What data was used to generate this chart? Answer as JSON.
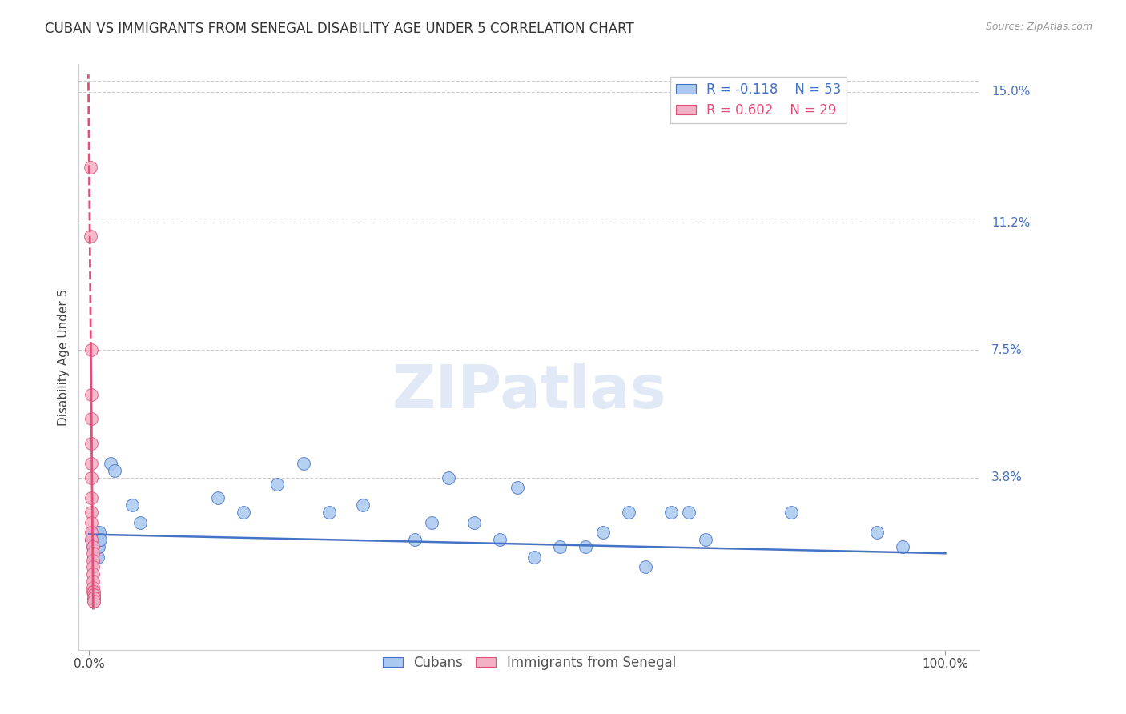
{
  "title": "CUBAN VS IMMIGRANTS FROM SENEGAL DISABILITY AGE UNDER 5 CORRELATION CHART",
  "source": "Source: ZipAtlas.com",
  "ylabel": "Disability Age Under 5",
  "ytick_labels": [
    "15.0%",
    "11.2%",
    "7.5%",
    "3.8%"
  ],
  "ytick_values": [
    0.15,
    0.112,
    0.075,
    0.038
  ],
  "ymax": 0.158,
  "ymin": -0.012,
  "xmax": 1.04,
  "xmin": -0.012,
  "legend_R_cubans": "R = -0.118",
  "legend_N_cubans": "N = 53",
  "legend_R_senegal": "R = 0.602",
  "legend_N_senegal": "N = 29",
  "cubans_color": "#aac8f0",
  "senegal_color": "#f4b0c4",
  "trend_cubans_color": "#4472c4",
  "trend_senegal_color": "#e0507a",
  "background_color": "#ffffff",
  "cubans_x": [
    0.003,
    0.004,
    0.004,
    0.005,
    0.005,
    0.005,
    0.006,
    0.006,
    0.006,
    0.007,
    0.007,
    0.007,
    0.008,
    0.008,
    0.008,
    0.009,
    0.009,
    0.01,
    0.01,
    0.01,
    0.011,
    0.011,
    0.012,
    0.012,
    0.013,
    0.025,
    0.03,
    0.05,
    0.06,
    0.15,
    0.18,
    0.22,
    0.25,
    0.28,
    0.32,
    0.38,
    0.4,
    0.42,
    0.45,
    0.48,
    0.5,
    0.52,
    0.55,
    0.58,
    0.6,
    0.63,
    0.65,
    0.68,
    0.7,
    0.72,
    0.82,
    0.92,
    0.95
  ],
  "cubans_y": [
    0.02,
    0.018,
    0.022,
    0.02,
    0.018,
    0.015,
    0.02,
    0.018,
    0.022,
    0.02,
    0.018,
    0.022,
    0.02,
    0.015,
    0.018,
    0.02,
    0.022,
    0.018,
    0.015,
    0.02,
    0.02,
    0.018,
    0.02,
    0.022,
    0.02,
    0.042,
    0.04,
    0.03,
    0.025,
    0.032,
    0.028,
    0.036,
    0.042,
    0.028,
    0.03,
    0.02,
    0.025,
    0.038,
    0.025,
    0.02,
    0.035,
    0.015,
    0.018,
    0.018,
    0.022,
    0.028,
    0.012,
    0.028,
    0.028,
    0.02,
    0.028,
    0.022,
    0.018
  ],
  "senegal_x": [
    0.002,
    0.002,
    0.003,
    0.003,
    0.003,
    0.003,
    0.003,
    0.003,
    0.003,
    0.003,
    0.003,
    0.003,
    0.003,
    0.004,
    0.004,
    0.004,
    0.004,
    0.004,
    0.004,
    0.004,
    0.004,
    0.005,
    0.005,
    0.005,
    0.005,
    0.005,
    0.005,
    0.005,
    0.005
  ],
  "senegal_y": [
    0.128,
    0.108,
    0.075,
    0.062,
    0.055,
    0.048,
    0.042,
    0.038,
    0.032,
    0.028,
    0.025,
    0.022,
    0.02,
    0.018,
    0.016,
    0.014,
    0.012,
    0.01,
    0.008,
    0.006,
    0.005,
    0.005,
    0.004,
    0.004,
    0.003,
    0.003,
    0.003,
    0.002,
    0.002
  ],
  "title_fontsize": 12,
  "axis_label_fontsize": 11,
  "tick_fontsize": 11,
  "legend_fontsize": 12
}
